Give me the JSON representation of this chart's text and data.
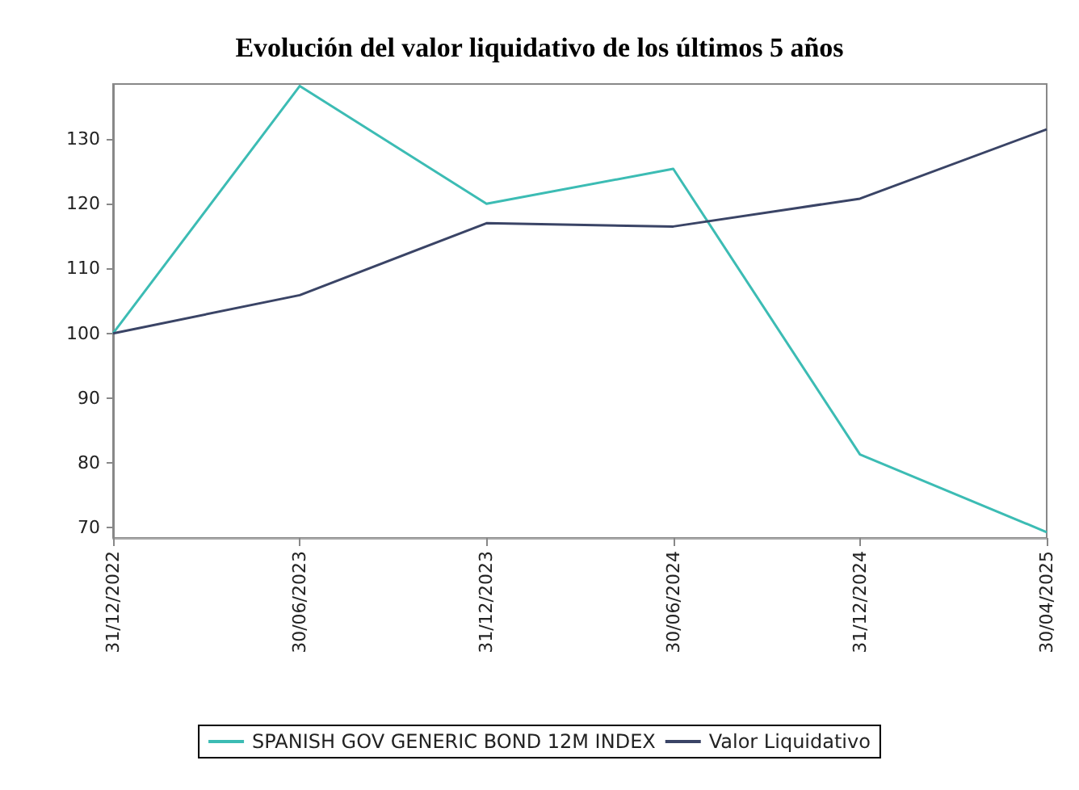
{
  "chart_data": {
    "type": "line",
    "title": "Evolución del valor liquidativo de los últimos 5 años",
    "categories": [
      "31/12/2022",
      "30/06/2023",
      "31/12/2023",
      "30/06/2024",
      "31/12/2024",
      "30/04/2025"
    ],
    "series": [
      {
        "name": "SPANISH GOV GENERIC BOND 12M INDEX",
        "color": "#3cbcb4",
        "values": [
          100,
          138.2,
          120,
          125.4,
          81.3,
          69.3
        ]
      },
      {
        "name": "Valor Liquidativo",
        "color": "#3a4466",
        "values": [
          100,
          105.9,
          117,
          116.5,
          120.8,
          131.5
        ]
      }
    ],
    "ylim": [
      68.4,
      138.5
    ],
    "yticks": [
      70,
      80,
      90,
      100,
      110,
      120,
      130
    ],
    "grid": false,
    "legend": "bottom",
    "marker": "none",
    "line_style": "solid"
  }
}
